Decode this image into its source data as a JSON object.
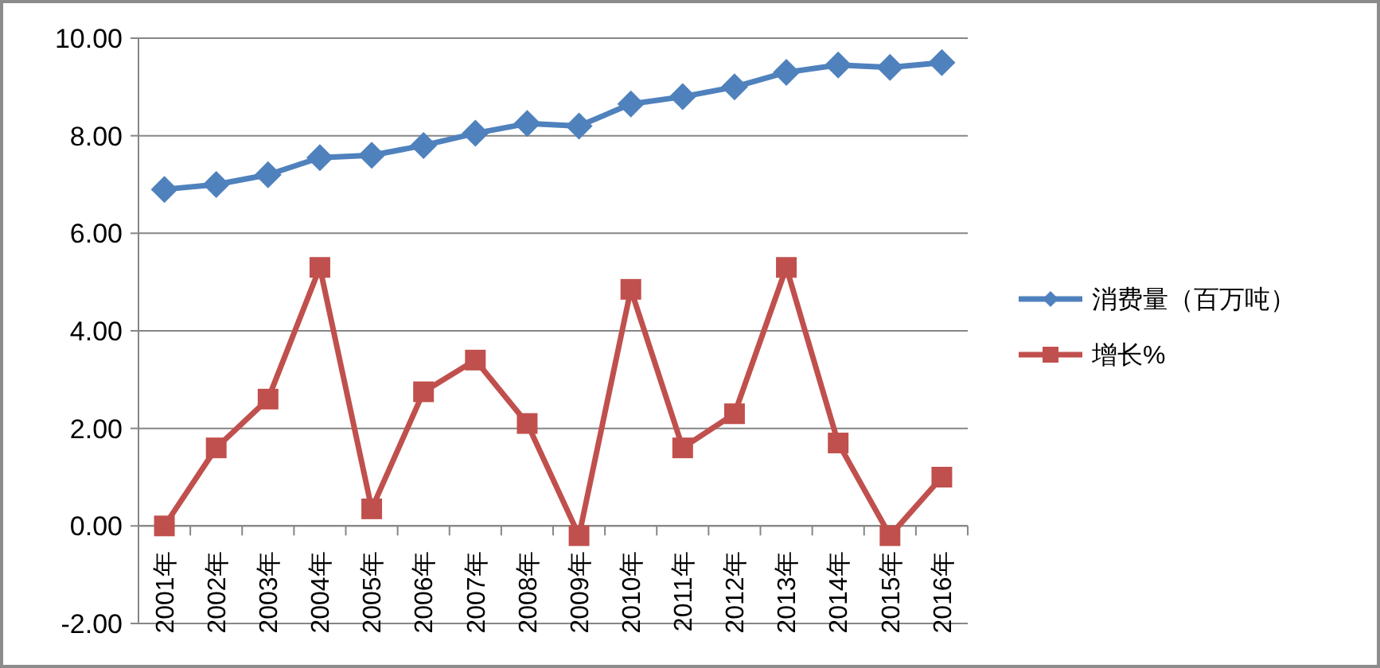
{
  "chart_data": {
    "type": "line",
    "categories": [
      "2001年",
      "2002年",
      "2003年",
      "2004年",
      "2005年",
      "2006年",
      "2007年",
      "2008年",
      "2009年",
      "2010年",
      "2011年",
      "2012年",
      "2013年",
      "2014年",
      "2015年",
      "2016年"
    ],
    "series": [
      {
        "name": "消费量（百万吨）",
        "color": "#4f81bd",
        "marker": "diamond",
        "values": [
          6.9,
          7.0,
          7.2,
          7.55,
          7.6,
          7.8,
          8.05,
          8.25,
          8.2,
          8.65,
          8.8,
          9.0,
          9.3,
          9.45,
          9.4,
          9.5
        ]
      },
      {
        "name": "增长%",
        "color": "#c0504d",
        "marker": "square",
        "values": [
          0,
          1.6,
          2.6,
          5.3,
          0.35,
          2.75,
          3.4,
          2.1,
          -0.2,
          4.85,
          1.6,
          2.3,
          5.3,
          1.7,
          -0.2,
          1.0
        ]
      }
    ],
    "ylim": [
      -2,
      10
    ],
    "yticks": [
      {
        "value": -2,
        "label": "-2.00"
      },
      {
        "value": 0,
        "label": "0.00"
      },
      {
        "value": 2,
        "label": "2.00"
      },
      {
        "value": 4,
        "label": "4.00"
      },
      {
        "value": 6,
        "label": "6.00"
      },
      {
        "value": 8,
        "label": "8.00"
      },
      {
        "value": 10,
        "label": "10.00"
      }
    ],
    "grid": "y",
    "legend": "right"
  }
}
